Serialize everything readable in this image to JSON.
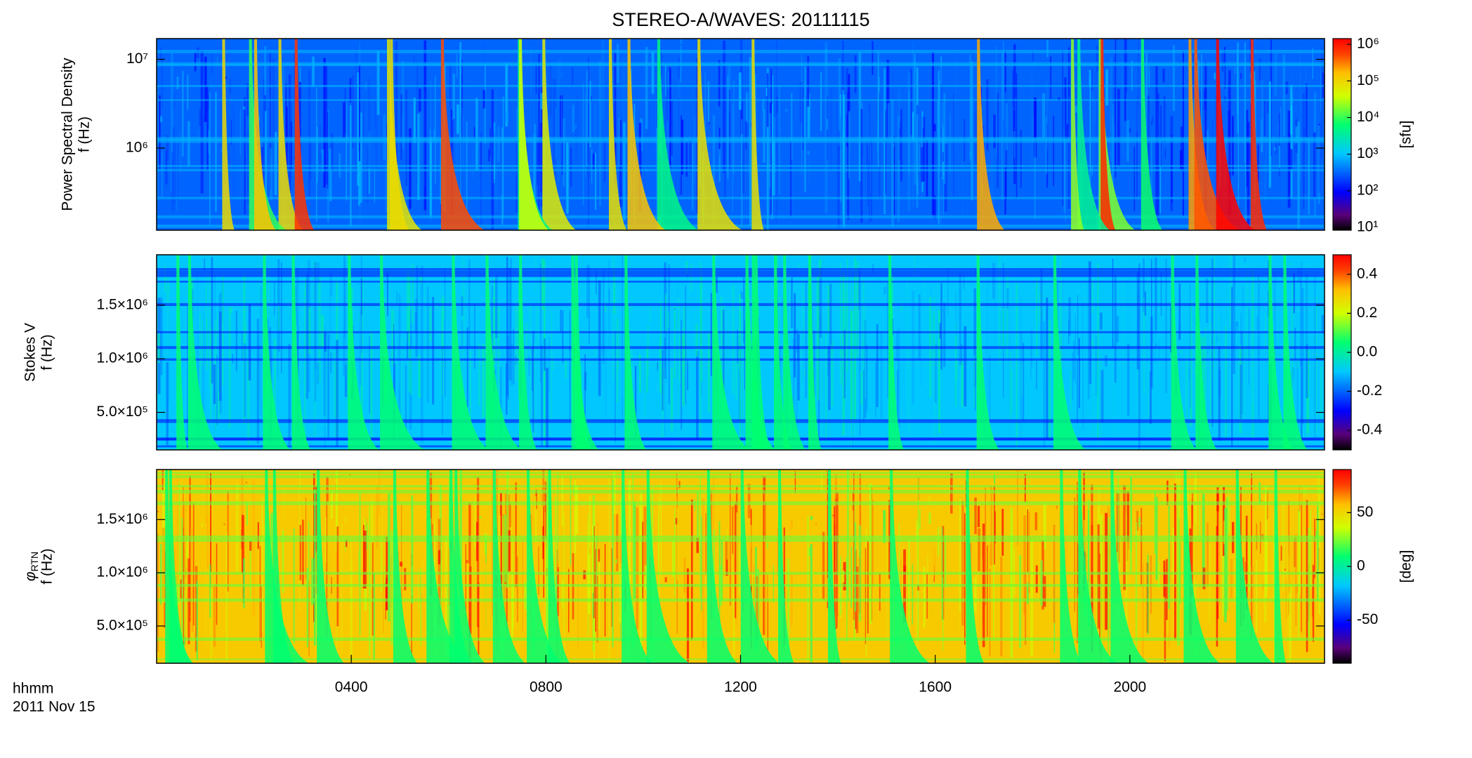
{
  "figure": {
    "title": "STEREO-A/WAVES: 20111115",
    "xlabel": "hhmm",
    "date": "2011 Nov 15"
  },
  "chart_data": [
    {
      "type": "heatmap",
      "ylabel": [
        "Power Spectral Density",
        "f (Hz)"
      ],
      "ylim": [
        119000,
        17100000
      ],
      "ylog": true,
      "yticks": [
        {
          "value": 1000000,
          "label": "10⁶"
        },
        {
          "value": 10000000,
          "label": "10⁷"
        }
      ],
      "xlim": [
        0,
        24
      ],
      "colorbar": {
        "label": "[sfu]",
        "clim": [
          8.4,
          1430000
        ],
        "clog": true,
        "cticks": [
          {
            "value": 10,
            "label": "10¹"
          },
          {
            "value": 100,
            "label": "10²"
          },
          {
            "value": 1000,
            "label": "10³"
          },
          {
            "value": 10000,
            "label": "10⁴"
          },
          {
            "value": 100000,
            "label": "10⁵"
          },
          {
            "value": 1000000,
            "label": "10⁶"
          }
        ]
      }
    },
    {
      "type": "heatmap",
      "ylabel": [
        "Stokes V",
        "f (Hz)"
      ],
      "ylim": [
        150000,
        1970000
      ],
      "ylog": false,
      "yticks": [
        {
          "value": 500000,
          "label": "5.0×10⁵"
        },
        {
          "value": 1000000,
          "label": "1.0×10⁶"
        },
        {
          "value": 1500000,
          "label": "1.5×10⁶"
        }
      ],
      "xlim": [
        0,
        24
      ],
      "colorbar": {
        "clim": [
          -0.5,
          0.5
        ],
        "clog": false,
        "cticks": [
          {
            "value": -0.4,
            "label": "-0.4"
          },
          {
            "value": -0.2,
            "label": "-0.2"
          },
          {
            "value": 0,
            "label": "0.0"
          },
          {
            "value": 0.2,
            "label": "0.2"
          },
          {
            "value": 0.4,
            "label": "0.4"
          }
        ]
      }
    },
    {
      "type": "heatmap",
      "ylabel_symbol": "φ",
      "ylabel_subscript": "RTN",
      "ylabel": [
        "f (Hz)"
      ],
      "ylim": [
        150000,
        1970000
      ],
      "ylog": false,
      "yticks": [
        {
          "value": 500000,
          "label": "5.0×10⁵"
        },
        {
          "value": 1000000,
          "label": "1.0×10⁶"
        },
        {
          "value": 1500000,
          "label": "1.5×10⁶"
        }
      ],
      "xlim": [
        0,
        24
      ],
      "xticks": [
        {
          "value": 4,
          "label": "0400"
        },
        {
          "value": 8,
          "label": "0800"
        },
        {
          "value": 12,
          "label": "1200"
        },
        {
          "value": 16,
          "label": "1600"
        },
        {
          "value": 20,
          "label": "2000"
        }
      ],
      "colorbar": {
        "label": "[deg]",
        "clim": [
          -90,
          90
        ],
        "clog": false,
        "cticks": [
          -50,
          0,
          50
        ]
      }
    }
  ]
}
